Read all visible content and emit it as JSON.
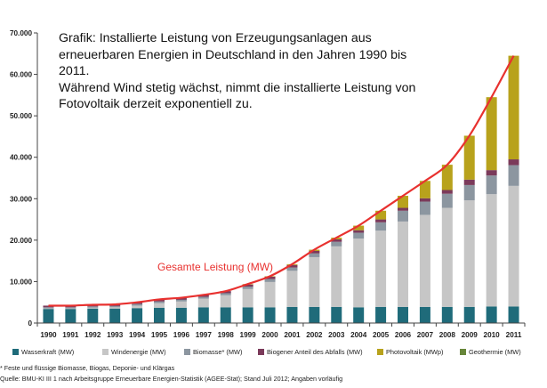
{
  "title_lines": [
    "Grafik: Installierte Leistung von Erzeugungsanlagen aus",
    "erneuerbaren Energien in Deutschland in den Jahren 1990 bis",
    "2011.",
    "Während Wind stetig wächst, nimmt die installierte Leistung von",
    "Fotovoltaik derzeit exponentiell zu."
  ],
  "total_line_label": "Gesamte Leistung (MW)",
  "footnotes": [
    "* Feste und flüssige Biomasse, Biogas, Deponie- und Klärgas",
    "Quelle: BMU-KI III 1 nach Arbeitsgruppe Erneuerbare Energien-Statistik (AGEE-Stat); Stand Juli 2012; Angaben vorläufig"
  ],
  "chart_data": {
    "type": "bar",
    "stacked": true,
    "categories": [
      "1990",
      "1991",
      "1992",
      "1993",
      "1994",
      "1995",
      "1996",
      "1997",
      "1998",
      "1999",
      "2000",
      "2001",
      "2002",
      "2003",
      "2004",
      "2005",
      "2006",
      "2007",
      "2008",
      "2009",
      "2010",
      "2011"
    ],
    "ylim": [
      0,
      70000
    ],
    "yticks": [
      0,
      10000,
      20000,
      30000,
      40000,
      50000,
      60000,
      70000
    ],
    "ytick_labels": [
      "0",
      "10.000",
      "20.000",
      "30.000",
      "40.000",
      "50.000",
      "60.000",
      "70.000"
    ],
    "grid": false,
    "legend_position": "bottom",
    "series": [
      {
        "name": "Wasserkraft (MW)",
        "color": "#1f6b7a",
        "values": [
          3400,
          3400,
          3500,
          3500,
          3600,
          3700,
          3700,
          3800,
          3800,
          3800,
          3800,
          3900,
          3900,
          3900,
          3800,
          3900,
          3900,
          3900,
          3900,
          3900,
          4000,
          4000
        ]
      },
      {
        "name": "Windenergie (MW)",
        "color": "#c6c6c6",
        "values": [
          100,
          100,
          200,
          300,
          600,
          1100,
          1500,
          2100,
          2900,
          4400,
          6100,
          8700,
          12000,
          14600,
          16600,
          18400,
          20600,
          22200,
          23900,
          25700,
          27100,
          29100
        ]
      },
      {
        "name": "Biomasse* (MW)",
        "color": "#8c96a0",
        "values": [
          300,
          300,
          300,
          300,
          400,
          400,
          400,
          400,
          500,
          600,
          700,
          800,
          900,
          1100,
          1400,
          2000,
          2600,
          3200,
          3400,
          3700,
          4500,
          5000
        ]
      },
      {
        "name": "Biogener Anteil des Abfalls (MW)",
        "color": "#7b3a5a",
        "values": [
          400,
          400,
          400,
          400,
          400,
          500,
          500,
          500,
          500,
          500,
          600,
          600,
          600,
          600,
          600,
          700,
          700,
          800,
          900,
          1300,
          1300,
          1400
        ]
      },
      {
        "name": "Photovoltaik (MWp)",
        "color": "#b8a21c",
        "values": [
          0,
          0,
          0,
          0,
          0,
          0,
          0,
          0,
          0,
          100,
          100,
          200,
          300,
          400,
          1100,
          2100,
          2900,
          4200,
          6100,
          10600,
          17600,
          25000
        ]
      },
      {
        "name": "Geothermie (MW)",
        "color": "#67863a",
        "values": [
          0,
          0,
          0,
          0,
          0,
          0,
          0,
          0,
          0,
          0,
          0,
          0,
          0,
          0,
          0,
          0,
          0,
          0,
          0,
          0,
          0,
          0
        ]
      }
    ],
    "total": {
      "name": "Gesamte Leistung (MW)",
      "color": "#e8312f",
      "values": [
        4200,
        4200,
        4400,
        4500,
        5000,
        5700,
        6100,
        6800,
        7700,
        9400,
        11300,
        14200,
        17700,
        20600,
        23500,
        27100,
        30700,
        34300,
        38200,
        45200,
        54500,
        64500
      ]
    }
  }
}
